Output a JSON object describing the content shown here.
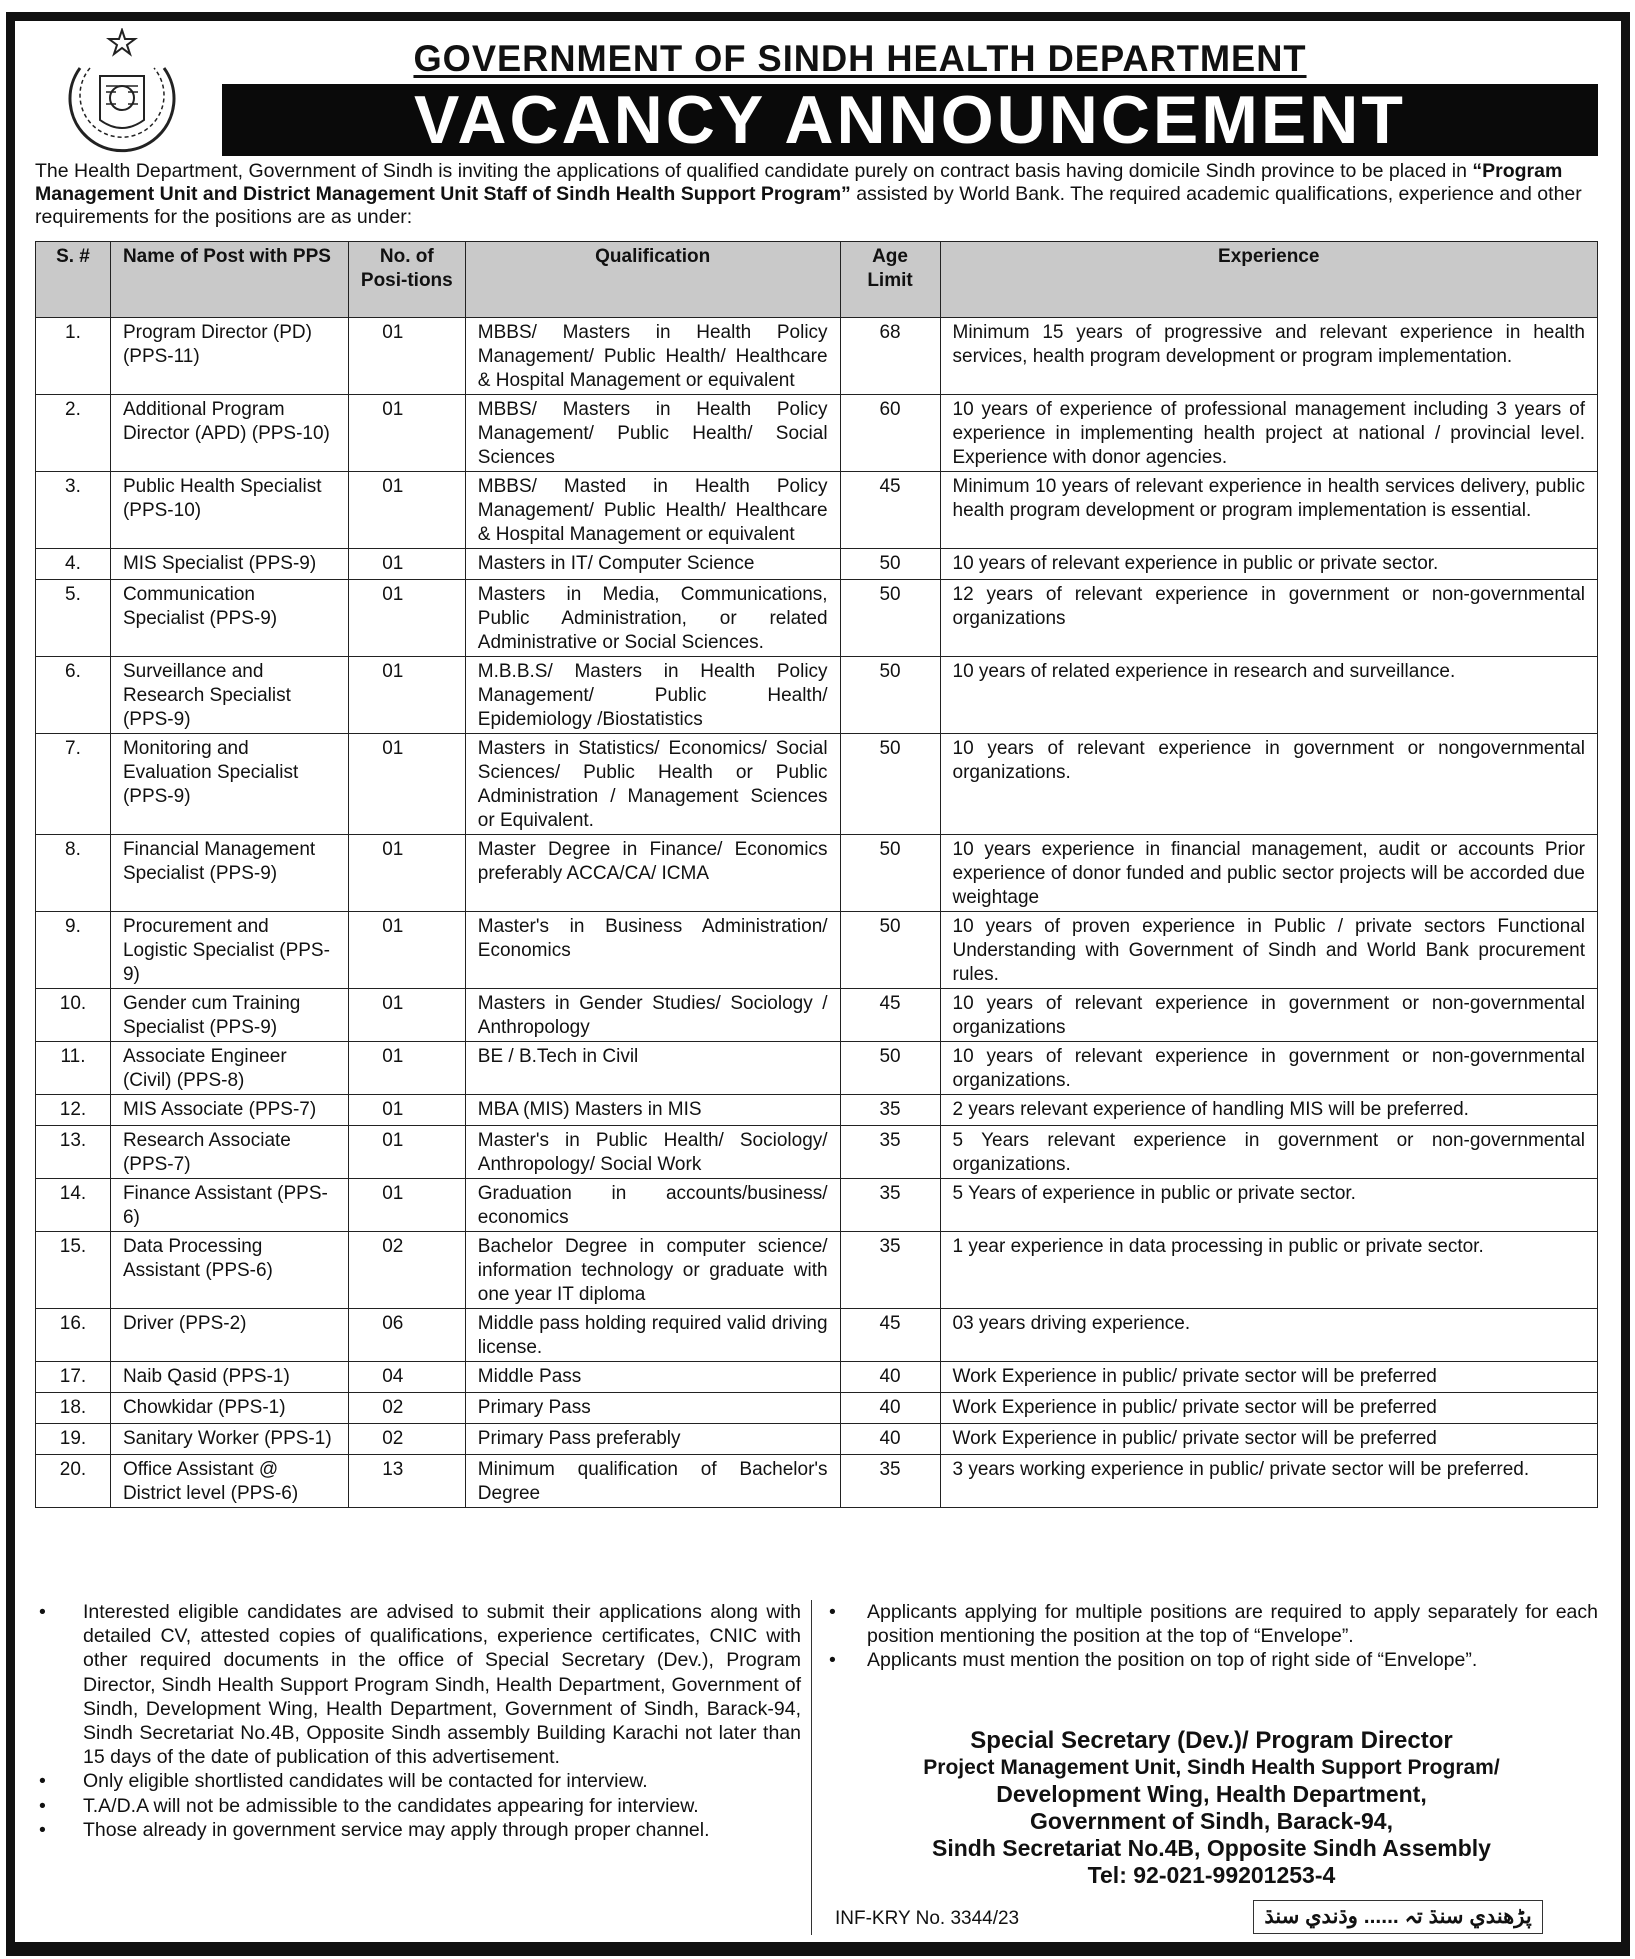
{
  "header": {
    "title": "GOVERNMENT OF SINDH HEALTH DEPARTMENT",
    "banner": "VACANCY ANNOUNCEMENT"
  },
  "intro": {
    "part1": "The Health Department, Government of Sindh is inviting the applications of qualified candidate purely on contract basis having domicile Sindh province to be placed in ",
    "program": "“Program Management Unit and District Management Unit Staff of Sindh Health Support Program”",
    "part2": " assisted by World Bank. The required academic qualifications, experience and other requirements for the positions are as under:"
  },
  "table": {
    "headers": {
      "sn": "S. #",
      "post": "Name of Post with PPS",
      "positions": "No. of Posi-tions",
      "qualification": "Qualification",
      "age": "Age Limit",
      "experience": "Experience"
    },
    "rows": [
      {
        "sn": "1.",
        "post": "Program Director (PD) (PPS-11)",
        "positions": "01",
        "qualification": "MBBS/ Masters in Health Policy Management/ Public Health/ Healthcare & Hospital Management or equivalent",
        "age": "68",
        "experience": "Minimum 15 years of progressive and relevant experience in health services, health program development or program implementation."
      },
      {
        "sn": "2.",
        "post": "Additional Program Director (APD) (PPS-10)",
        "positions": "01",
        "qualification": "MBBS/ Masters in Health Policy Management/ Public Health/ Social Sciences",
        "age": "60",
        "experience": "10 years of experience of professional management including 3 years of experience in implementing health project at national / provincial level. Experience with donor agencies."
      },
      {
        "sn": "3.",
        "post": "Public Health Specialist (PPS-10)",
        "positions": "01",
        "qualification": "MBBS/ Masted in Health Policy Management/ Public Health/ Healthcare & Hospital Management or equivalent",
        "age": "45",
        "experience": "Minimum 10 years of relevant experience in health services delivery, public health program development or program implementation is essential."
      },
      {
        "sn": "4.",
        "post": "MIS Specialist (PPS-9)",
        "positions": "01",
        "qualification": "Masters in IT/ Computer Science",
        "age": "50",
        "experience": "10 years of relevant experience in public or private sector."
      },
      {
        "sn": "5.",
        "post": "Communication Specialist (PPS-9)",
        "positions": "01",
        "qualification": "Masters in Media, Communications, Public Administration, or related Administrative or Social Sciences.",
        "age": "50",
        "experience": "12 years of relevant experience in government or non-governmental organizations"
      },
      {
        "sn": "6.",
        "post": "Surveillance and Research Specialist (PPS-9)",
        "positions": "01",
        "qualification": "M.B.B.S/ Masters in Health Policy Management/ Public Health/ Epidemiology /Biostatistics",
        "age": "50",
        "experience": "10 years of related experience in research and surveillance."
      },
      {
        "sn": "7.",
        "post": "Monitoring and Evaluation Specialist (PPS-9)",
        "positions": "01",
        "qualification": "Masters in Statistics/ Economics/ Social Sciences/ Public Health or Public Administration / Management Sciences or Equivalent.",
        "age": "50",
        "experience": "10 years of relevant experience in government or nongovernmental organizations."
      },
      {
        "sn": "8.",
        "post": "Financial Management Specialist (PPS-9)",
        "positions": "01",
        "qualification": "Master Degree in Finance/ Economics preferably ACCA/CA/ ICMA",
        "age": "50",
        "experience": "10 years experience in financial management, audit or accounts Prior experience of donor funded and public sector projects will be accorded due weightage"
      },
      {
        "sn": "9.",
        "post": "Procurement and Logistic Specialist (PPS-9)",
        "positions": "01",
        "qualification": "Master's in Business Administration/ Economics",
        "age": "50",
        "experience": "10 years of proven experience in Public / private sectors Functional Understanding with Government of Sindh and World Bank procurement rules."
      },
      {
        "sn": "10.",
        "post": "Gender cum Training Specialist (PPS-9)",
        "positions": "01",
        "qualification": "Masters in Gender Studies/ Sociology / Anthropology",
        "age": "45",
        "experience": "10 years of relevant experience in government or non-governmental organizations"
      },
      {
        "sn": "11.",
        "post": "Associate Engineer (Civil) (PPS-8)",
        "positions": "01",
        "qualification": "BE / B.Tech in Civil",
        "age": "50",
        "experience": "10 years of relevant experience in government or non-governmental organizations."
      },
      {
        "sn": "12.",
        "post": "MIS Associate (PPS-7)",
        "positions": "01",
        "qualification": "MBA (MIS) Masters in MIS",
        "age": "35",
        "experience": "2 years relevant experience of handling MIS will be preferred."
      },
      {
        "sn": "13.",
        "post": "Research Associate (PPS-7)",
        "positions": "01",
        "qualification": "Master's in Public Health/ Sociology/ Anthropology/ Social Work",
        "age": "35",
        "experience": "5 Years relevant experience in government or non-governmental organizations."
      },
      {
        "sn": "14.",
        "post": "Finance Assistant (PPS-6)",
        "positions": "01",
        "qualification": "Graduation in accounts/business/ economics",
        "age": "35",
        "experience": "5 Years of experience in public or private sector."
      },
      {
        "sn": "15.",
        "post": "Data Processing Assistant (PPS-6)",
        "positions": "02",
        "qualification": "Bachelor Degree in computer science/ information technology or graduate with one year IT diploma",
        "age": "35",
        "experience": "1 year experience in data processing in public or private sector."
      },
      {
        "sn": "16.",
        "post": "Driver (PPS-2)",
        "positions": "06",
        "qualification": "Middle pass holding required valid driving license.",
        "age": "45",
        "experience": "03 years driving experience."
      },
      {
        "sn": "17.",
        "post": "Naib Qasid (PPS-1)",
        "positions": "04",
        "qualification": "Middle Pass",
        "age": "40",
        "experience": "Work Experience in public/ private sector will be preferred"
      },
      {
        "sn": "18.",
        "post": "Chowkidar (PPS-1)",
        "positions": "02",
        "qualification": "Primary Pass",
        "age": "40",
        "experience": "Work Experience in public/ private sector will be preferred"
      },
      {
        "sn": "19.",
        "post": "Sanitary Worker (PPS-1)",
        "positions": "02",
        "qualification": "Primary Pass preferably",
        "age": "40",
        "experience": "Work Experience in public/ private sector will be preferred"
      },
      {
        "sn": "20.",
        "post": "Office Assistant @ District level (PPS-6)",
        "positions": "13",
        "qualification": "Minimum qualification of Bachelor's Degree",
        "age": "35",
        "experience": "3 years working experience in public/ private sector will be preferred."
      }
    ]
  },
  "notes_left": [
    "Interested eligible candidates are advised to submit their applications along with detailed CV, attested copies of qualifications, experience certificates, CNIC with other required documents in the office of Special Secretary (Dev.), Program Director, Sindh Health Support Program Sindh, Health Department, Government of Sindh, Development Wing, Health Department, Government of Sindh, Barack-94, Sindh Secretariat No.4B, Opposite Sindh assembly Building Karachi not later than 15 days of the date of publication of this advertisement.",
    "Only eligible shortlisted candidates will be contacted for interview.",
    "T.A/D.A will not be admissible to the candidates appearing for interview.",
    "Those already in government service may apply through proper channel."
  ],
  "notes_right": [
    "Applicants applying for multiple positions are required to apply separately for each position mentioning the position at the top of “Envelope”.",
    "Applicants must mention the position on top of right side of “Envelope”."
  ],
  "address": {
    "line1": "Special Secretary (Dev.)/ Program Director",
    "line2": "Project Management Unit, Sindh Health Support Program/",
    "line3": "Development Wing, Health Department,",
    "line4": "Government of Sindh, Barack-94,",
    "line5": "Sindh Secretariat No.4B, Opposite Sindh Assembly",
    "tel": "Tel: 92-021-99201253-4"
  },
  "reference": "INF-KRY No. 3344/23",
  "slogan": "پڑهندي سنڌ تہ ...... وڌندي سنڌ"
}
